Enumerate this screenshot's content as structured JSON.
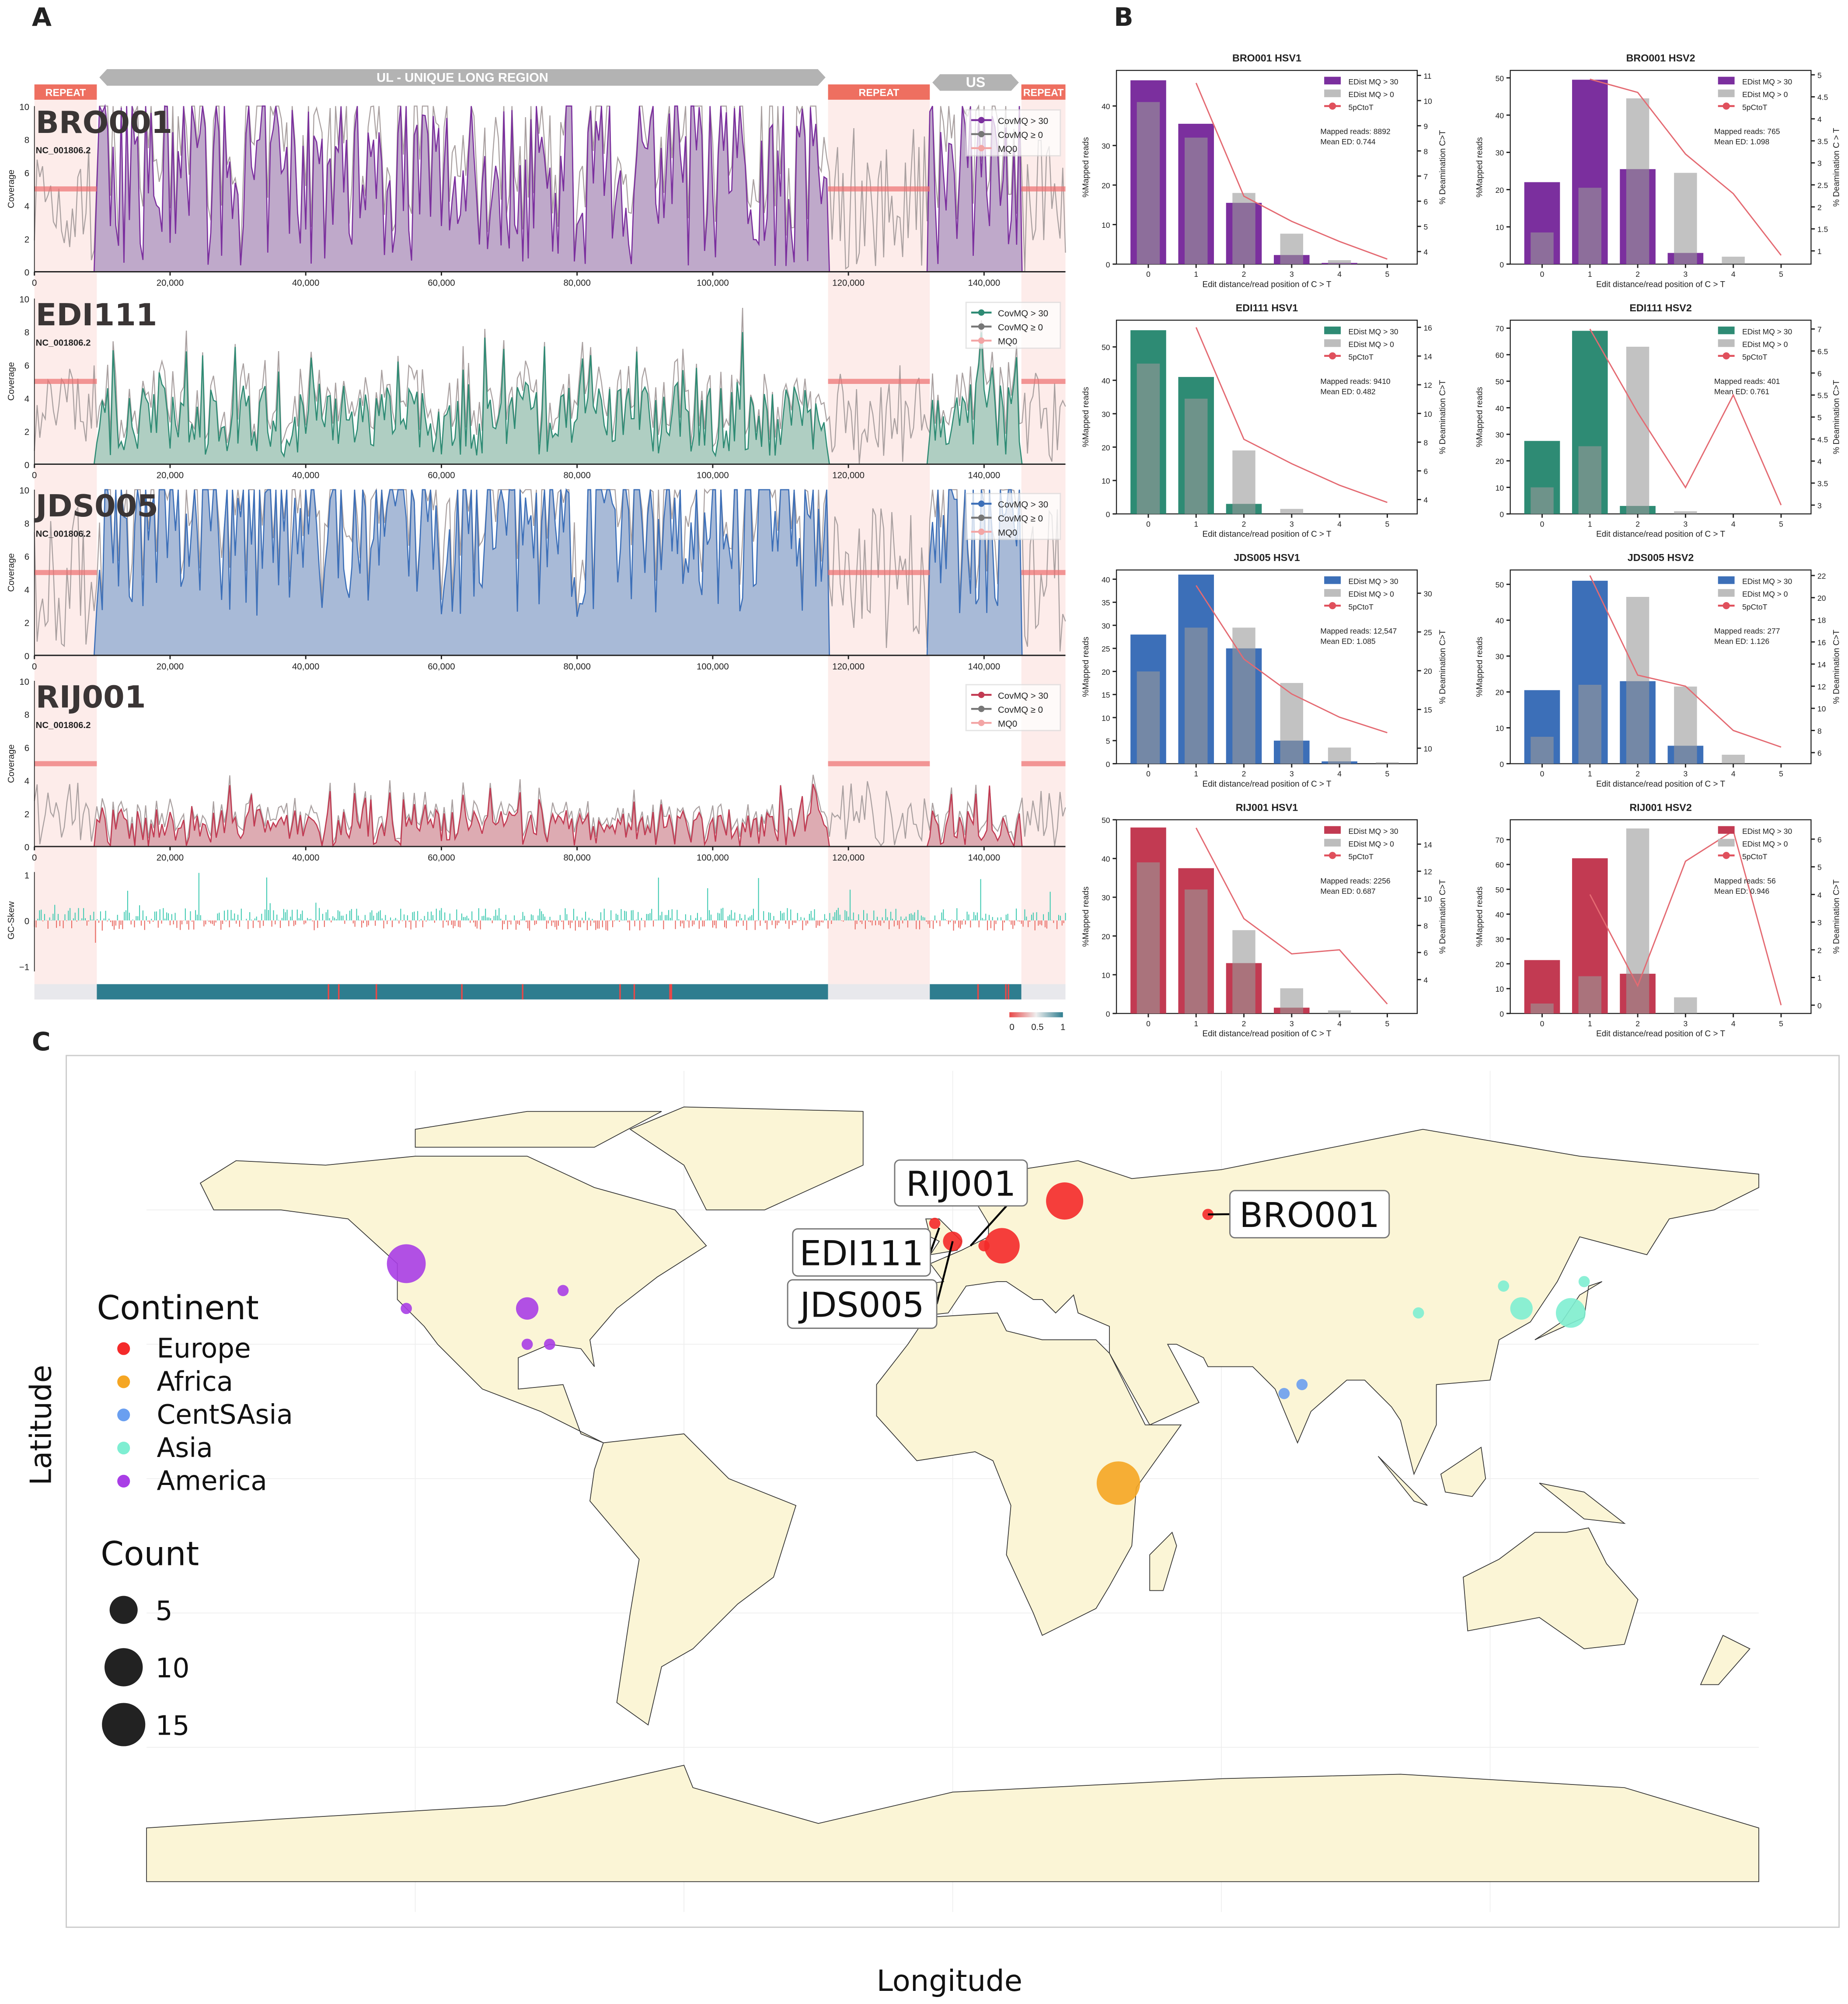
{
  "figure_labels": {
    "a": "A",
    "b": "B",
    "c": "C"
  },
  "panel_a": {
    "xlim": [
      0,
      152000
    ],
    "regions": [
      {
        "label": "REPEAT",
        "start": 0,
        "end": 9200,
        "type": "repeat"
      },
      {
        "label": "UL - UNIQUE LONG REGION",
        "start": 9200,
        "end": 117000,
        "type": "unique"
      },
      {
        "label": "REPEAT",
        "start": 117000,
        "end": 132000,
        "type": "repeat"
      },
      {
        "label": "US",
        "start": 132000,
        "end": 145500,
        "type": "unique"
      },
      {
        "label": "REPEAT",
        "start": 145500,
        "end": 152000,
        "type": "repeat"
      }
    ],
    "x_ticks": [
      0,
      20000,
      40000,
      60000,
      80000,
      100000,
      120000,
      140000
    ],
    "x_tick_labels": [
      "0",
      "20,000",
      "40,000",
      "60,000",
      "80,000",
      "100,000",
      "120,000",
      "140,000"
    ],
    "y_label": "Coverage",
    "ylim": [
      0,
      10
    ],
    "y_ticks": [
      "0",
      "2",
      "4",
      "6",
      "8",
      "10"
    ],
    "reference": "NC_001806.2",
    "legend": [
      "CovMQ > 30",
      "CovMQ ≥ 0",
      "MQ0"
    ],
    "samples": [
      {
        "name": "BRO001",
        "color": "#7b2f9e",
        "fill": "#b8a0c4"
      },
      {
        "name": "EDI111",
        "color": "#2e8b74",
        "fill": "#a6c9bb"
      },
      {
        "name": "JDS005",
        "color": "#3c6fb8",
        "fill": "#9fb3d3"
      },
      {
        "name": "RIJ001",
        "color": "#c23a52",
        "fill": "#d9a2aa"
      }
    ],
    "gc_skew": {
      "label": "GC-Skew",
      "ticks": [
        "1",
        "0",
        "−1"
      ],
      "positive_color": "#3cc9b0",
      "negative_color": "#e8665e"
    },
    "colorbar_ticks": [
      "0",
      "0.5",
      "1"
    ]
  },
  "chart_data": [
    {
      "type": "bar",
      "title": "BRO001 HSV1",
      "color": "#7b2f9e",
      "categories": [
        "0",
        "1",
        "2",
        "3",
        "4",
        "5"
      ],
      "series": [
        {
          "name": "EDist MQ > 30",
          "values": [
            46.5,
            35.5,
            15.5,
            2.3,
            0.3,
            0
          ]
        },
        {
          "name": "EDist MQ > 0",
          "values": [
            41,
            32,
            18,
            7.7,
            1,
            0
          ]
        }
      ],
      "line": {
        "name": "5pCtoT",
        "x": [
          1,
          2,
          3,
          4,
          5
        ],
        "values": [
          10.7,
          6.2,
          5.2,
          4.4,
          3.7
        ]
      },
      "ylim": [
        0,
        49
      ],
      "yticks": [
        0,
        10,
        20,
        30,
        40
      ],
      "y2lim": [
        3.5,
        11.2
      ],
      "y2ticks": [
        4,
        5,
        6,
        7,
        8,
        9,
        10,
        11
      ],
      "mapped_reads": "Mapped reads: 8892",
      "mean_ed": "Mean ED: 0.744",
      "xlabel": "Edit distance/read position of C > T",
      "ylabel": "%Mapped reads",
      "y2label": "% Deamination C>T"
    },
    {
      "type": "bar",
      "title": "BRO001 HSV2",
      "color": "#7b2f9e",
      "categories": [
        "0",
        "1",
        "2",
        "3",
        "4",
        "5"
      ],
      "series": [
        {
          "name": "EDist MQ > 30",
          "values": [
            22,
            49.5,
            25.5,
            3,
            0,
            0
          ]
        },
        {
          "name": "EDist MQ > 0",
          "values": [
            8.5,
            20.5,
            44.5,
            24.5,
            2,
            0
          ]
        }
      ],
      "line": {
        "name": "5pCtoT",
        "x": [
          1,
          2,
          3,
          4,
          5
        ],
        "values": [
          4.9,
          4.6,
          3.2,
          2.3,
          0.9
        ]
      },
      "ylim": [
        0,
        52
      ],
      "yticks": [
        0,
        10,
        20,
        30,
        40,
        50
      ],
      "y2lim": [
        0.7,
        5.1
      ],
      "y2ticks": [
        1,
        1.5,
        2,
        2.5,
        3,
        3.5,
        4,
        4.5,
        5
      ],
      "mapped_reads": "Mapped reads: 765",
      "mean_ed": "Mean ED: 1.098",
      "xlabel": "Edit distance/read position of C > T",
      "ylabel": "%Mapped reads",
      "y2label": "% Deamination C > T"
    },
    {
      "type": "bar",
      "title": "EDI111 HSV1",
      "color": "#2e8b74",
      "categories": [
        "0",
        "1",
        "2",
        "3",
        "4",
        "5"
      ],
      "series": [
        {
          "name": "EDist MQ > 30",
          "values": [
            55,
            41,
            3,
            0,
            0,
            0
          ]
        },
        {
          "name": "EDist MQ > 0",
          "values": [
            45,
            34.5,
            19,
            1.5,
            0,
            0
          ]
        }
      ],
      "line": {
        "name": "5pCtoT",
        "x": [
          1,
          2,
          3,
          4,
          5
        ],
        "values": [
          16,
          8.2,
          6.5,
          5,
          3.8
        ]
      },
      "ylim": [
        0,
        58
      ],
      "yticks": [
        0,
        10,
        20,
        30,
        40,
        50
      ],
      "y2lim": [
        3,
        16.5
      ],
      "y2ticks": [
        4,
        6,
        8,
        10,
        12,
        14,
        16
      ],
      "mapped_reads": "Mapped reads: 9410",
      "mean_ed": "Mean ED: 0.482",
      "xlabel": "Edit distance/read position of C > T",
      "ylabel": "%Mapped reads",
      "y2label": "% Deamination C>T"
    },
    {
      "type": "bar",
      "title": "EDI111 HSV2",
      "color": "#2e8b74",
      "categories": [
        "0",
        "1",
        "2",
        "3",
        "4",
        "5"
      ],
      "series": [
        {
          "name": "EDist MQ > 30",
          "values": [
            27.5,
            69,
            3,
            0,
            0,
            0
          ]
        },
        {
          "name": "EDist MQ > 0",
          "values": [
            10,
            25.5,
            63,
            1,
            0,
            0
          ]
        }
      ],
      "line": {
        "name": "5pCtoT",
        "x": [
          1,
          2,
          3,
          4,
          5
        ],
        "values": [
          7,
          5.1,
          3.4,
          5.5,
          3
        ]
      },
      "ylim": [
        0,
        73
      ],
      "yticks": [
        0,
        10,
        20,
        30,
        40,
        50,
        60,
        70
      ],
      "y2lim": [
        2.8,
        7.2
      ],
      "y2ticks": [
        3,
        3.5,
        4,
        4.5,
        5,
        5.5,
        6,
        6.5,
        7
      ],
      "mapped_reads": "Mapped reads: 401",
      "mean_ed": "Mean ED: 0.761",
      "xlabel": "Edit distance/read position of C > T",
      "ylabel": "%Mapped reads",
      "y2label": "% Deamination C>T"
    },
    {
      "type": "bar",
      "title": "JDS005 HSV1",
      "color": "#3c6fb8",
      "categories": [
        "0",
        "1",
        "2",
        "3",
        "4",
        "5"
      ],
      "series": [
        {
          "name": "EDist MQ > 30",
          "values": [
            28,
            41,
            25,
            5,
            0.5,
            0
          ]
        },
        {
          "name": "EDist MQ > 0",
          "values": [
            20,
            29.5,
            29.5,
            17.5,
            3.5,
            0.3
          ]
        }
      ],
      "line": {
        "name": "5pCtoT",
        "x": [
          1,
          2,
          3,
          4,
          5
        ],
        "values": [
          31,
          21.5,
          17,
          14,
          12
        ]
      },
      "ylim": [
        0,
        42
      ],
      "yticks": [
        0,
        5,
        10,
        15,
        20,
        25,
        30,
        35,
        40
      ],
      "y2lim": [
        8,
        33
      ],
      "y2ticks": [
        10,
        15,
        20,
        25,
        30
      ],
      "mapped_reads": "Mapped reads: 12,547",
      "mean_ed": "Mean ED: 1.085",
      "xlabel": "Edit distance/read position of C > T",
      "ylabel": "%Mapped reads",
      "y2label": "% Deamination C>T"
    },
    {
      "type": "bar",
      "title": "JDS005 HSV2",
      "color": "#3c6fb8",
      "categories": [
        "0",
        "1",
        "2",
        "3",
        "4",
        "5"
      ],
      "series": [
        {
          "name": "EDist MQ > 30",
          "values": [
            20.5,
            51,
            23,
            5,
            0,
            0
          ]
        },
        {
          "name": "EDist MQ > 0",
          "values": [
            7.5,
            22,
            46.5,
            21.5,
            2.5,
            0
          ]
        }
      ],
      "line": {
        "name": "5pCtoT",
        "x": [
          1,
          2,
          3,
          4,
          5
        ],
        "values": [
          22,
          13,
          12,
          8,
          6.5
        ]
      },
      "ylim": [
        0,
        54
      ],
      "yticks": [
        0,
        10,
        20,
        30,
        40,
        50
      ],
      "y2lim": [
        5,
        22.5
      ],
      "y2ticks": [
        6,
        8,
        10,
        12,
        14,
        16,
        18,
        20,
        22
      ],
      "mapped_reads": "Mapped reads: 277",
      "mean_ed": "Mean ED: 1.126",
      "xlabel": "Edit distance/read position of C > T",
      "ylabel": "%Mapped reads",
      "y2label": "% Deamination C>T"
    },
    {
      "type": "bar",
      "title": "RIJ001 HSV1",
      "color": "#c23a52",
      "categories": [
        "0",
        "1",
        "2",
        "3",
        "4",
        "5"
      ],
      "series": [
        {
          "name": "EDist MQ > 30",
          "values": [
            48,
            37.5,
            13,
            1.5,
            0,
            0
          ]
        },
        {
          "name": "EDist MQ > 0",
          "values": [
            39,
            32,
            21.5,
            6.5,
            0.8,
            0
          ]
        }
      ],
      "line": {
        "name": "5pCtoT",
        "x": [
          1,
          2,
          3,
          4,
          5
        ],
        "values": [
          15.2,
          8.5,
          5.9,
          6.2,
          2.2
        ]
      },
      "ylim": [
        0,
        50
      ],
      "yticks": [
        0,
        10,
        20,
        30,
        40,
        50
      ],
      "y2lim": [
        1.5,
        15.8
      ],
      "y2ticks": [
        4,
        6,
        8,
        10,
        12,
        14
      ],
      "mapped_reads": "Mapped reads: 2256",
      "mean_ed": "Mean ED: 0.687",
      "xlabel": "Edit distance/read position of C > T",
      "ylabel": "%Mapped reads",
      "y2label": "% Deamination C>T"
    },
    {
      "type": "bar",
      "title": "RIJ001 HSV2",
      "color": "#c23a52",
      "categories": [
        "0",
        "1",
        "2",
        "3",
        "4",
        "5"
      ],
      "series": [
        {
          "name": "EDist MQ > 30",
          "values": [
            21.5,
            62.5,
            16,
            0,
            0,
            0
          ]
        },
        {
          "name": "EDist MQ > 0",
          "values": [
            4,
            15,
            74.5,
            6.5,
            0,
            0
          ]
        }
      ],
      "line": {
        "name": "5pCtoT",
        "x": [
          1,
          2,
          3,
          4,
          5
        ],
        "values": [
          4,
          0.7,
          5.2,
          6.3,
          0
        ]
      },
      "ylim": [
        0,
        78
      ],
      "yticks": [
        0,
        10,
        20,
        30,
        40,
        50,
        60,
        70
      ],
      "y2lim": [
        -0.3,
        6.7
      ],
      "y2ticks": [
        0,
        1,
        2,
        3,
        4,
        5,
        6
      ],
      "mapped_reads": "Mapped reads: 56",
      "mean_ed": "Mean ED: 0.946",
      "xlabel": "Edit distance/read position of C > T",
      "ylabel": "%Mapped reads",
      "y2label": "% Deamination C>T"
    },
    {
      "type": "scatter",
      "xlabel": "Longitude",
      "ylabel": "Latitude",
      "legend_continent_title": "Continent",
      "continents": [
        {
          "name": "Europe",
          "color": "#f42a2a"
        },
        {
          "name": "Africa",
          "color": "#f5a623"
        },
        {
          "name": "CentSAsia",
          "color": "#6a9ff0"
        },
        {
          "name": "Asia",
          "color": "#7eeed2"
        },
        {
          "name": "America",
          "color": "#a93ee6"
        }
      ],
      "legend_count_title": "Count",
      "count_legend": [
        5,
        10,
        15
      ],
      "points": [
        {
          "lon": -4,
          "lat": 57,
          "count": 1,
          "continent": "Europe"
        },
        {
          "lon": 0,
          "lat": 53,
          "count": 3,
          "continent": "Europe"
        },
        {
          "lon": 7,
          "lat": 52,
          "count": 1,
          "continent": "Europe"
        },
        {
          "lon": 11,
          "lat": 52,
          "count": 10,
          "continent": "Europe"
        },
        {
          "lon": 25,
          "lat": 62,
          "count": 11,
          "continent": "Europe"
        },
        {
          "lon": 57,
          "lat": 59,
          "count": 1,
          "continent": "Europe"
        },
        {
          "lon": -122,
          "lat": 48,
          "count": 12,
          "continent": "America"
        },
        {
          "lon": -122,
          "lat": 38,
          "count": 1,
          "continent": "America"
        },
        {
          "lon": -95,
          "lat": 38,
          "count": 4,
          "continent": "America"
        },
        {
          "lon": -87,
          "lat": 42,
          "count": 1,
          "continent": "America"
        },
        {
          "lon": -95,
          "lat": 30,
          "count": 1,
          "continent": "America"
        },
        {
          "lon": -90,
          "lat": 30,
          "count": 1,
          "continent": "America"
        },
        {
          "lon": 104,
          "lat": 37,
          "count": 1,
          "continent": "Asia"
        },
        {
          "lon": 123,
          "lat": 43,
          "count": 1,
          "continent": "Asia"
        },
        {
          "lon": 127,
          "lat": 38,
          "count": 4,
          "continent": "Asia"
        },
        {
          "lon": 138,
          "lat": 37,
          "count": 7,
          "continent": "Asia"
        },
        {
          "lon": 141,
          "lat": 44,
          "count": 1,
          "continent": "Asia"
        },
        {
          "lon": 74,
          "lat": 19,
          "count": 1,
          "continent": "CentSAsia"
        },
        {
          "lon": 78,
          "lat": 21,
          "count": 1,
          "continent": "CentSAsia"
        },
        {
          "lon": 37,
          "lat": -1,
          "count": 15,
          "continent": "Africa"
        }
      ],
      "annotations": [
        {
          "label": "RIJ001",
          "lon": 4,
          "lat": 52
        },
        {
          "label": "EDI111",
          "lon": -3,
          "lat": 56
        },
        {
          "label": "JDS005",
          "lon": 0,
          "lat": 53
        },
        {
          "label": "BRO001",
          "lon": 57,
          "lat": 59
        }
      ],
      "land_color": "#fbf5d6"
    }
  ]
}
